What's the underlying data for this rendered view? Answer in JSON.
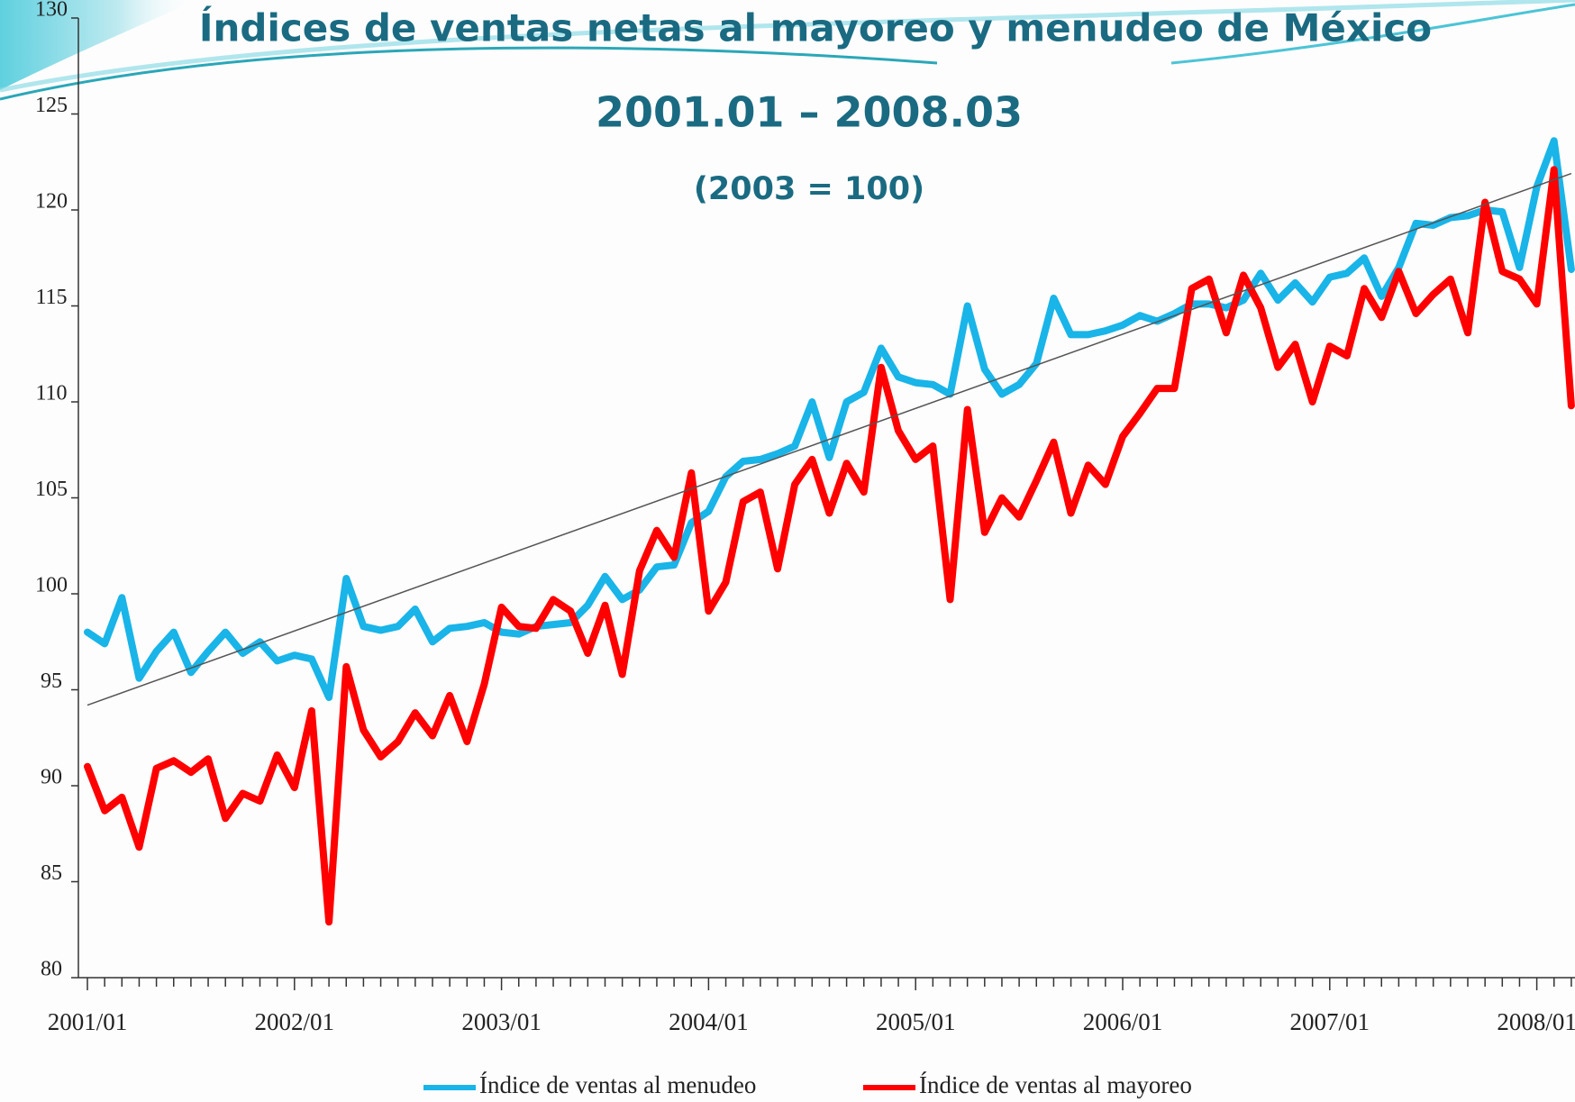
{
  "chart_data": {
    "type": "line",
    "title": "Índices de ventas netas al mayoreo y menudeo de México",
    "subtitle": "2001.01 – 2008.03",
    "note": "(2003 = 100)",
    "categories": [
      "2001/01",
      null,
      null,
      null,
      null,
      null,
      null,
      null,
      null,
      null,
      null,
      null,
      "2002/01",
      null,
      null,
      null,
      null,
      null,
      null,
      null,
      null,
      null,
      null,
      null,
      "2003/01",
      null,
      null,
      null,
      null,
      null,
      null,
      null,
      null,
      null,
      null,
      null,
      "2004/01",
      null,
      null,
      null,
      null,
      null,
      null,
      null,
      null,
      null,
      null,
      null,
      "2005/01",
      null,
      null,
      null,
      null,
      null,
      null,
      null,
      null,
      null,
      null,
      null,
      "2006/01",
      null,
      null,
      null,
      null,
      null,
      null,
      null,
      null,
      null,
      null,
      null,
      "2007/01",
      null,
      null,
      null,
      null,
      null,
      null,
      null,
      null,
      null,
      null,
      null,
      "2008/01",
      null,
      null
    ],
    "series": [
      {
        "name": "Índice de ventas al menudeo",
        "color": "#19b4e8",
        "values": [
          98.0,
          97.4,
          99.8,
          95.6,
          97.0,
          98.0,
          95.9,
          97.0,
          98.0,
          96.9,
          97.5,
          96.5,
          96.8,
          96.6,
          94.6,
          100.8,
          98.3,
          98.1,
          98.3,
          99.2,
          97.5,
          98.2,
          98.3,
          98.5,
          98.0,
          97.9,
          98.3,
          98.4,
          98.5,
          99.4,
          100.9,
          99.7,
          100.2,
          101.4,
          101.5,
          103.7,
          104.3,
          106.1,
          106.9,
          107.0,
          107.3,
          107.7,
          110.0,
          107.1,
          110.0,
          110.5,
          112.8,
          111.3,
          111.0,
          110.9,
          110.4,
          115.0,
          111.7,
          110.4,
          110.9,
          112.0,
          115.4,
          113.5,
          113.5,
          113.7,
          114.0,
          114.5,
          114.2,
          114.6,
          115.1,
          115.1,
          114.9,
          115.3,
          116.7,
          115.3,
          116.2,
          115.2,
          116.5,
          116.7,
          117.5,
          115.5,
          117.0,
          119.3,
          119.2,
          119.6,
          119.7,
          120.0,
          119.9,
          117.0,
          121.2,
          123.6,
          116.9
        ]
      },
      {
        "name": "Índice de ventas al mayoreo",
        "color": "#ff0000",
        "values": [
          91.0,
          88.7,
          89.4,
          86.8,
          90.9,
          91.3,
          90.7,
          91.4,
          88.3,
          89.6,
          89.2,
          91.6,
          89.9,
          93.9,
          82.9,
          96.2,
          92.9,
          91.5,
          92.3,
          93.8,
          92.6,
          94.7,
          92.3,
          95.3,
          99.3,
          98.3,
          98.2,
          99.7,
          99.1,
          96.9,
          99.4,
          95.8,
          101.2,
          103.3,
          101.9,
          106.3,
          99.1,
          100.6,
          104.8,
          105.3,
          101.3,
          105.7,
          107.0,
          104.2,
          106.8,
          105.3,
          111.8,
          108.5,
          107.0,
          107.7,
          99.7,
          109.6,
          103.2,
          105.0,
          104.0,
          105.9,
          107.9,
          104.2,
          106.7,
          105.7,
          108.2,
          109.4,
          110.7,
          110.7,
          115.9,
          116.4,
          113.6,
          116.6,
          114.9,
          111.8,
          113.0,
          110.0,
          112.9,
          112.4,
          115.9,
          114.4,
          116.8,
          114.6,
          115.6,
          116.4,
          113.6,
          120.4,
          116.8,
          116.4,
          115.1,
          122.1,
          109.8
        ]
      }
    ],
    "trendline": {
      "start": 94.2,
      "end": 121.9,
      "color": "#555555"
    },
    "ylim": [
      80,
      130
    ],
    "yticks": [
      80,
      85,
      90,
      95,
      100,
      105,
      110,
      115,
      120,
      125,
      130
    ],
    "legend": "bottom"
  }
}
